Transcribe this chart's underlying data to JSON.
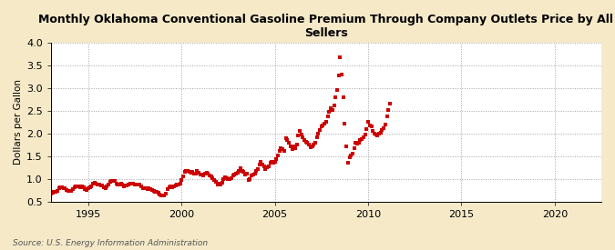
{
  "title": "Monthly Oklahoma Conventional Gasoline Premium Through Company Outlets Price by All\nSellers",
  "ylabel": "Dollars per Gallon",
  "source": "Source: U.S. Energy Information Administration",
  "xlim": [
    1993.0,
    2022.5
  ],
  "ylim": [
    0.5,
    4.0
  ],
  "xticks": [
    1995,
    2000,
    2005,
    2010,
    2015,
    2020
  ],
  "yticks": [
    0.5,
    1.0,
    1.5,
    2.0,
    2.5,
    3.0,
    3.5,
    4.0
  ],
  "background_color": "#f5e9c8",
  "plot_background_color": "#ffffff",
  "marker_color": "#cc0000",
  "marker_size": 3.0,
  "data": [
    [
      1993.0,
      0.68
    ],
    [
      1993.08,
      0.7
    ],
    [
      1993.17,
      0.72
    ],
    [
      1993.25,
      0.72
    ],
    [
      1993.33,
      0.74
    ],
    [
      1993.42,
      0.79
    ],
    [
      1993.5,
      0.82
    ],
    [
      1993.58,
      0.81
    ],
    [
      1993.67,
      0.8
    ],
    [
      1993.75,
      0.79
    ],
    [
      1993.83,
      0.76
    ],
    [
      1993.92,
      0.74
    ],
    [
      1994.0,
      0.74
    ],
    [
      1994.08,
      0.73
    ],
    [
      1994.17,
      0.77
    ],
    [
      1994.25,
      0.82
    ],
    [
      1994.33,
      0.83
    ],
    [
      1994.42,
      0.84
    ],
    [
      1994.5,
      0.83
    ],
    [
      1994.58,
      0.82
    ],
    [
      1994.67,
      0.83
    ],
    [
      1994.75,
      0.82
    ],
    [
      1994.83,
      0.78
    ],
    [
      1994.92,
      0.75
    ],
    [
      1995.0,
      0.79
    ],
    [
      1995.08,
      0.82
    ],
    [
      1995.17,
      0.84
    ],
    [
      1995.25,
      0.89
    ],
    [
      1995.33,
      0.91
    ],
    [
      1995.42,
      0.89
    ],
    [
      1995.5,
      0.88
    ],
    [
      1995.58,
      0.87
    ],
    [
      1995.67,
      0.86
    ],
    [
      1995.75,
      0.85
    ],
    [
      1995.83,
      0.82
    ],
    [
      1995.92,
      0.8
    ],
    [
      1996.0,
      0.83
    ],
    [
      1996.08,
      0.87
    ],
    [
      1996.17,
      0.93
    ],
    [
      1996.25,
      0.96
    ],
    [
      1996.33,
      0.96
    ],
    [
      1996.42,
      0.95
    ],
    [
      1996.5,
      0.9
    ],
    [
      1996.58,
      0.88
    ],
    [
      1996.67,
      0.88
    ],
    [
      1996.75,
      0.9
    ],
    [
      1996.83,
      0.87
    ],
    [
      1996.92,
      0.84
    ],
    [
      1997.0,
      0.85
    ],
    [
      1997.08,
      0.86
    ],
    [
      1997.17,
      0.87
    ],
    [
      1997.25,
      0.9
    ],
    [
      1997.33,
      0.89
    ],
    [
      1997.42,
      0.89
    ],
    [
      1997.5,
      0.87
    ],
    [
      1997.58,
      0.87
    ],
    [
      1997.67,
      0.88
    ],
    [
      1997.75,
      0.87
    ],
    [
      1997.83,
      0.83
    ],
    [
      1997.92,
      0.79
    ],
    [
      1998.0,
      0.79
    ],
    [
      1998.08,
      0.79
    ],
    [
      1998.17,
      0.77
    ],
    [
      1998.25,
      0.79
    ],
    [
      1998.33,
      0.78
    ],
    [
      1998.42,
      0.76
    ],
    [
      1998.5,
      0.74
    ],
    [
      1998.58,
      0.72
    ],
    [
      1998.67,
      0.72
    ],
    [
      1998.75,
      0.69
    ],
    [
      1998.83,
      0.66
    ],
    [
      1998.92,
      0.63
    ],
    [
      1999.0,
      0.64
    ],
    [
      1999.08,
      0.64
    ],
    [
      1999.17,
      0.68
    ],
    [
      1999.25,
      0.77
    ],
    [
      1999.33,
      0.82
    ],
    [
      1999.42,
      0.84
    ],
    [
      1999.5,
      0.82
    ],
    [
      1999.58,
      0.83
    ],
    [
      1999.67,
      0.85
    ],
    [
      1999.75,
      0.88
    ],
    [
      1999.83,
      0.88
    ],
    [
      1999.92,
      0.89
    ],
    [
      2000.0,
      0.98
    ],
    [
      2000.08,
      1.05
    ],
    [
      2000.17,
      1.15
    ],
    [
      2000.25,
      1.18
    ],
    [
      2000.33,
      1.17
    ],
    [
      2000.42,
      1.16
    ],
    [
      2000.5,
      1.14
    ],
    [
      2000.58,
      1.16
    ],
    [
      2000.67,
      1.12
    ],
    [
      2000.75,
      1.11
    ],
    [
      2000.83,
      1.17
    ],
    [
      2000.92,
      1.14
    ],
    [
      2001.0,
      1.1
    ],
    [
      2001.08,
      1.1
    ],
    [
      2001.17,
      1.08
    ],
    [
      2001.25,
      1.12
    ],
    [
      2001.33,
      1.14
    ],
    [
      2001.42,
      1.12
    ],
    [
      2001.5,
      1.08
    ],
    [
      2001.58,
      1.05
    ],
    [
      2001.67,
      1.02
    ],
    [
      2001.75,
      0.98
    ],
    [
      2001.83,
      0.93
    ],
    [
      2001.92,
      0.88
    ],
    [
      2002.0,
      0.89
    ],
    [
      2002.08,
      0.87
    ],
    [
      2002.17,
      0.92
    ],
    [
      2002.25,
      1.0
    ],
    [
      2002.33,
      1.03
    ],
    [
      2002.42,
      1.02
    ],
    [
      2002.5,
      1.0
    ],
    [
      2002.58,
      1.0
    ],
    [
      2002.67,
      1.02
    ],
    [
      2002.75,
      1.07
    ],
    [
      2002.83,
      1.1
    ],
    [
      2002.92,
      1.12
    ],
    [
      2003.0,
      1.14
    ],
    [
      2003.08,
      1.17
    ],
    [
      2003.17,
      1.24
    ],
    [
      2003.25,
      1.18
    ],
    [
      2003.33,
      1.15
    ],
    [
      2003.42,
      1.1
    ],
    [
      2003.5,
      1.12
    ],
    [
      2003.58,
      0.98
    ],
    [
      2003.67,
      1.0
    ],
    [
      2003.75,
      1.08
    ],
    [
      2003.83,
      1.1
    ],
    [
      2003.92,
      1.12
    ],
    [
      2004.0,
      1.17
    ],
    [
      2004.08,
      1.22
    ],
    [
      2004.17,
      1.32
    ],
    [
      2004.25,
      1.38
    ],
    [
      2004.33,
      1.32
    ],
    [
      2004.42,
      1.28
    ],
    [
      2004.5,
      1.22
    ],
    [
      2004.58,
      1.25
    ],
    [
      2004.67,
      1.28
    ],
    [
      2004.75,
      1.35
    ],
    [
      2004.83,
      1.38
    ],
    [
      2004.92,
      1.35
    ],
    [
      2005.0,
      1.38
    ],
    [
      2005.08,
      1.44
    ],
    [
      2005.17,
      1.52
    ],
    [
      2005.25,
      1.62
    ],
    [
      2005.33,
      1.68
    ],
    [
      2005.42,
      1.65
    ],
    [
      2005.5,
      1.62
    ],
    [
      2005.58,
      1.9
    ],
    [
      2005.67,
      1.85
    ],
    [
      2005.75,
      1.8
    ],
    [
      2005.83,
      1.72
    ],
    [
      2005.92,
      1.65
    ],
    [
      2006.0,
      1.72
    ],
    [
      2006.08,
      1.68
    ],
    [
      2006.17,
      1.75
    ],
    [
      2006.25,
      1.95
    ],
    [
      2006.33,
      2.05
    ],
    [
      2006.42,
      1.98
    ],
    [
      2006.5,
      1.92
    ],
    [
      2006.58,
      1.85
    ],
    [
      2006.67,
      1.82
    ],
    [
      2006.75,
      1.8
    ],
    [
      2006.83,
      1.75
    ],
    [
      2006.92,
      1.7
    ],
    [
      2007.0,
      1.72
    ],
    [
      2007.08,
      1.75
    ],
    [
      2007.17,
      1.8
    ],
    [
      2007.25,
      1.92
    ],
    [
      2007.33,
      2.0
    ],
    [
      2007.42,
      2.08
    ],
    [
      2007.5,
      2.15
    ],
    [
      2007.58,
      2.18
    ],
    [
      2007.67,
      2.22
    ],
    [
      2007.75,
      2.25
    ],
    [
      2007.83,
      2.38
    ],
    [
      2007.92,
      2.48
    ],
    [
      2008.0,
      2.55
    ],
    [
      2008.08,
      2.52
    ],
    [
      2008.17,
      2.62
    ],
    [
      2008.25,
      2.8
    ],
    [
      2008.33,
      2.95
    ],
    [
      2008.42,
      3.28
    ],
    [
      2008.5,
      3.68
    ],
    [
      2008.58,
      3.3
    ],
    [
      2008.67,
      2.8
    ],
    [
      2008.75,
      2.22
    ],
    [
      2008.83,
      1.72
    ],
    [
      2008.92,
      1.35
    ],
    [
      2009.0,
      1.48
    ],
    [
      2009.08,
      1.52
    ],
    [
      2009.17,
      1.55
    ],
    [
      2009.25,
      1.68
    ],
    [
      2009.33,
      1.8
    ],
    [
      2009.42,
      1.78
    ],
    [
      2009.5,
      1.8
    ],
    [
      2009.58,
      1.85
    ],
    [
      2009.67,
      1.88
    ],
    [
      2009.75,
      1.92
    ],
    [
      2009.83,
      1.98
    ],
    [
      2009.92,
      2.1
    ],
    [
      2010.0,
      2.25
    ],
    [
      2010.08,
      2.18
    ],
    [
      2010.17,
      2.15
    ],
    [
      2010.25,
      2.05
    ],
    [
      2010.33,
      2.0
    ],
    [
      2010.42,
      1.98
    ],
    [
      2010.5,
      1.96
    ],
    [
      2010.58,
      2.0
    ],
    [
      2010.67,
      2.02
    ],
    [
      2010.75,
      2.08
    ],
    [
      2010.83,
      2.12
    ],
    [
      2010.92,
      2.2
    ],
    [
      2011.0,
      2.38
    ],
    [
      2011.08,
      2.52
    ],
    [
      2011.17,
      2.65
    ]
  ]
}
